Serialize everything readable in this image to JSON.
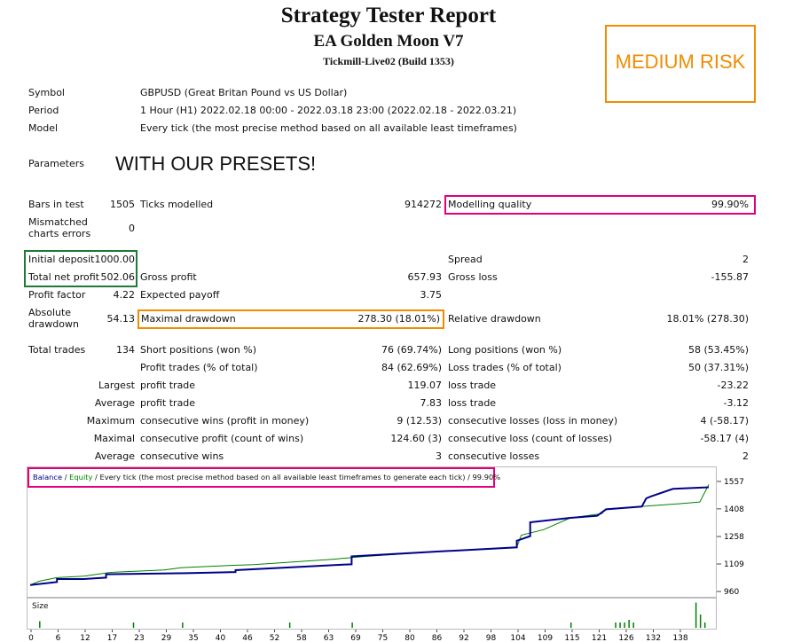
{
  "header": {
    "title": "Strategy Tester Report",
    "ea_name": "EA Golden Moon V7",
    "server": "Tickmill-Live02 (Build 1353)",
    "risk_badge": "MEDIUM RISK"
  },
  "colors": {
    "orange": "#f08c00",
    "magenta": "#e2007a",
    "green": "#1e7b35",
    "balance": "#00008b",
    "equity": "#008000"
  },
  "info": {
    "symbol_label": "Symbol",
    "symbol_value": "GBPUSD (Great Britan Pound vs US Dollar)",
    "period_label": "Period",
    "period_value": "1 Hour (H1) 2022.02.18 00:00 - 2022.03.18 23:00 (2022.02.18 - 2022.03.21)",
    "model_label": "Model",
    "model_value": "Every tick (the most precise method based on all available least timeframes)",
    "parameters_label": "Parameters",
    "parameters_value": "WITH OUR PRESETS!"
  },
  "stats": {
    "bars_label": "Bars in test",
    "bars_value": "1505",
    "ticks_label": "Ticks modelled",
    "ticks_value": "914272",
    "quality_label": "Modelling quality",
    "quality_value": "99.90%",
    "mismatch_label_1": "Mismatched",
    "mismatch_label_2": "charts errors",
    "mismatch_value": "0",
    "deposit_label": "Initial deposit",
    "deposit_value": "1000.00",
    "spread_label": "Spread",
    "spread_value": "2",
    "net_label": "Total net profit",
    "net_value": "502.06",
    "gross_profit_label": "Gross profit",
    "gross_profit_value": "657.93",
    "gross_loss_label": "Gross loss",
    "gross_loss_value": "-155.87",
    "pf_label": "Profit factor",
    "pf_value": "4.22",
    "payoff_label": "Expected payoff",
    "payoff_value": "3.75",
    "abs_dd_label_1": "Absolute",
    "abs_dd_label_2": "drawdown",
    "abs_dd_value": "54.13",
    "max_dd_label": "Maximal drawdown",
    "max_dd_value": "278.30 (18.01%)",
    "rel_dd_label": "Relative drawdown",
    "rel_dd_value": "18.01% (278.30)",
    "trades_label": "Total trades",
    "trades_value": "134",
    "short_label": "Short positions (won %)",
    "short_value": "76 (69.74%)",
    "long_label": "Long positions (won %)",
    "long_value": "58 (53.45%)",
    "ptrades_label": "Profit trades (% of total)",
    "ptrades_value": "84 (62.69%)",
    "ltrades_label": "Loss trades (% of total)",
    "ltrades_value": "50 (37.31%)",
    "largest": "Largest",
    "average": "Average",
    "maximum": "Maximum",
    "maximal": "Maximal",
    "profit_trade_label": "profit trade",
    "loss_trade_label": "loss trade",
    "largest_profit": "119.07",
    "largest_loss": "-23.22",
    "avg_profit": "7.83",
    "avg_loss": "-3.12",
    "cons_wins_money_label": "consecutive wins (profit in money)",
    "cons_wins_money": "9 (12.53)",
    "cons_losses_money_label": "consecutive losses (loss in money)",
    "cons_losses_money": "4 (-58.17)",
    "cons_profit_count_label": "consecutive profit (count of wins)",
    "cons_profit_count": "124.60 (3)",
    "cons_loss_count_label": "consecutive loss (count of losses)",
    "cons_loss_count": "-58.17 (4)",
    "avg_cons_wins_label": "consecutive wins",
    "avg_cons_wins": "3",
    "avg_cons_losses_label": "consecutive losses",
    "avg_cons_losses": "2"
  },
  "chart_legend": {
    "balance": "Balance",
    "sep": " / ",
    "equity": "Equity",
    "rest": " / Every tick (the most precise method based on all available least timeframes to generate each tick)",
    "quality": " / 99.90%"
  },
  "size_label": "Size",
  "chart_data": {
    "type": "line",
    "ylim": [
      960,
      1590
    ],
    "y_ticks": [
      "1557",
      "1408",
      "1258",
      "1109",
      "960"
    ],
    "x_ticks": [
      "0",
      "6",
      "12",
      "17",
      "23",
      "29",
      "35",
      "40",
      "46",
      "52",
      "58",
      "63",
      "69",
      "75",
      "80",
      "86",
      "92",
      "98",
      "104",
      "109",
      "115",
      "121",
      "126",
      "132",
      "138"
    ],
    "series": [
      {
        "name": "Balance",
        "values": [
          [
            0,
            1000
          ],
          [
            6,
            1016
          ],
          [
            6,
            1032
          ],
          [
            12,
            1032
          ],
          [
            17,
            1040
          ],
          [
            17,
            1058
          ],
          [
            35,
            1064
          ],
          [
            46,
            1070
          ],
          [
            46,
            1080
          ],
          [
            70,
            1110
          ],
          [
            72,
            1112
          ],
          [
            72,
            1155
          ],
          [
            92,
            1182
          ],
          [
            109,
            1204
          ],
          [
            109,
            1240
          ],
          [
            112,
            1265
          ],
          [
            112,
            1340
          ],
          [
            121,
            1364
          ],
          [
            127,
            1375
          ],
          [
            129,
            1410
          ],
          [
            137,
            1425
          ],
          [
            138,
            1470
          ],
          [
            139,
            1480
          ],
          [
            144,
            1521
          ],
          [
            152,
            1530
          ]
        ]
      },
      {
        "name": "Equity",
        "values": [
          [
            0,
            1000
          ],
          [
            2,
            1020
          ],
          [
            6,
            1040
          ],
          [
            12,
            1048
          ],
          [
            18,
            1068
          ],
          [
            30,
            1081
          ],
          [
            34,
            1094
          ],
          [
            45,
            1106
          ],
          [
            50,
            1110
          ],
          [
            68,
            1140
          ],
          [
            75,
            1155
          ],
          [
            92,
            1182
          ],
          [
            109,
            1204
          ],
          [
            110,
            1270
          ],
          [
            115,
            1300
          ],
          [
            121,
            1364
          ],
          [
            128,
            1386
          ],
          [
            129,
            1412
          ],
          [
            145,
            1440
          ],
          [
            150,
            1450
          ],
          [
            152,
            1545
          ]
        ]
      }
    ],
    "size_bars": [
      [
        2,
        0.25
      ],
      [
        23,
        0.2
      ],
      [
        34,
        0.2
      ],
      [
        58,
        0.2
      ],
      [
        72,
        0.2
      ],
      [
        121,
        0.2
      ],
      [
        131,
        0.2
      ],
      [
        132,
        0.2
      ],
      [
        133,
        0.2
      ],
      [
        134,
        0.3
      ],
      [
        135,
        0.2
      ],
      [
        149,
        0.95
      ],
      [
        150,
        0.5
      ],
      [
        151,
        0.2
      ]
    ]
  }
}
